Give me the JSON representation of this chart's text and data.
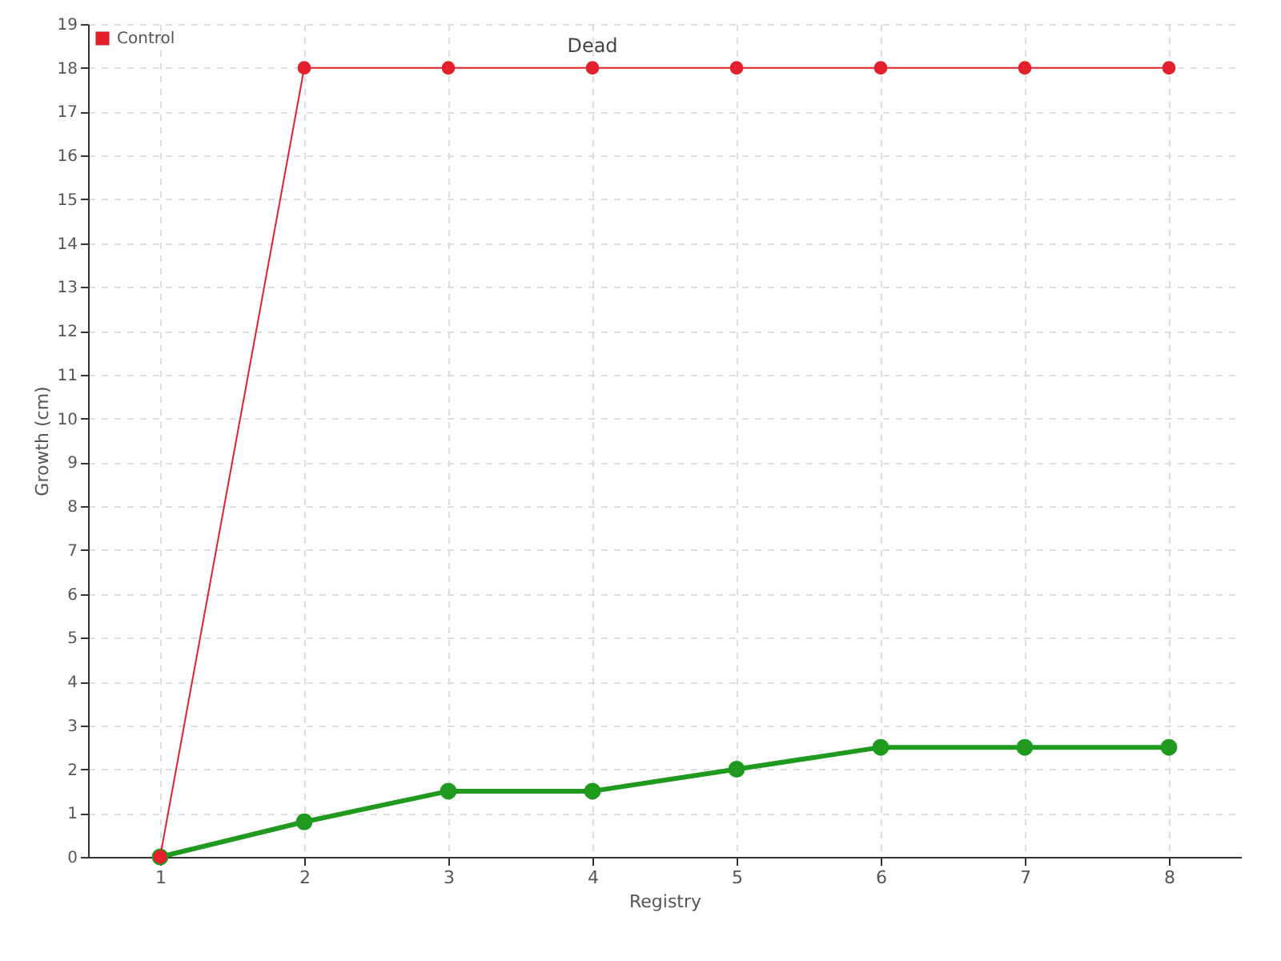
{
  "chart_data": {
    "type": "line",
    "xlabel": "Registry",
    "ylabel": "Growth (cm)",
    "categories": [
      "1",
      "2",
      "3",
      "4",
      "5",
      "6",
      "7",
      "8"
    ],
    "series": [
      {
        "color": "#1f9a1f",
        "values": [
          0,
          0.8,
          1.5,
          1.5,
          2,
          2.5,
          2.5,
          2.5
        ]
      },
      {
        "name": "Control",
        "color": "#e3202c",
        "values": [
          0,
          18,
          18,
          18,
          18,
          18,
          18,
          18
        ]
      }
    ],
    "ylim": [
      0,
      19
    ],
    "yticks": [
      0,
      1,
      2,
      3,
      4,
      5,
      6,
      7,
      8,
      9,
      10,
      11,
      12,
      13,
      14,
      15,
      16,
      17,
      18,
      19
    ],
    "grid": true,
    "legend": "top left",
    "marker": "circle",
    "line_style": "solid",
    "annotations": [
      {
        "text": "Dead",
        "x": "4",
        "y": 18
      }
    ]
  }
}
